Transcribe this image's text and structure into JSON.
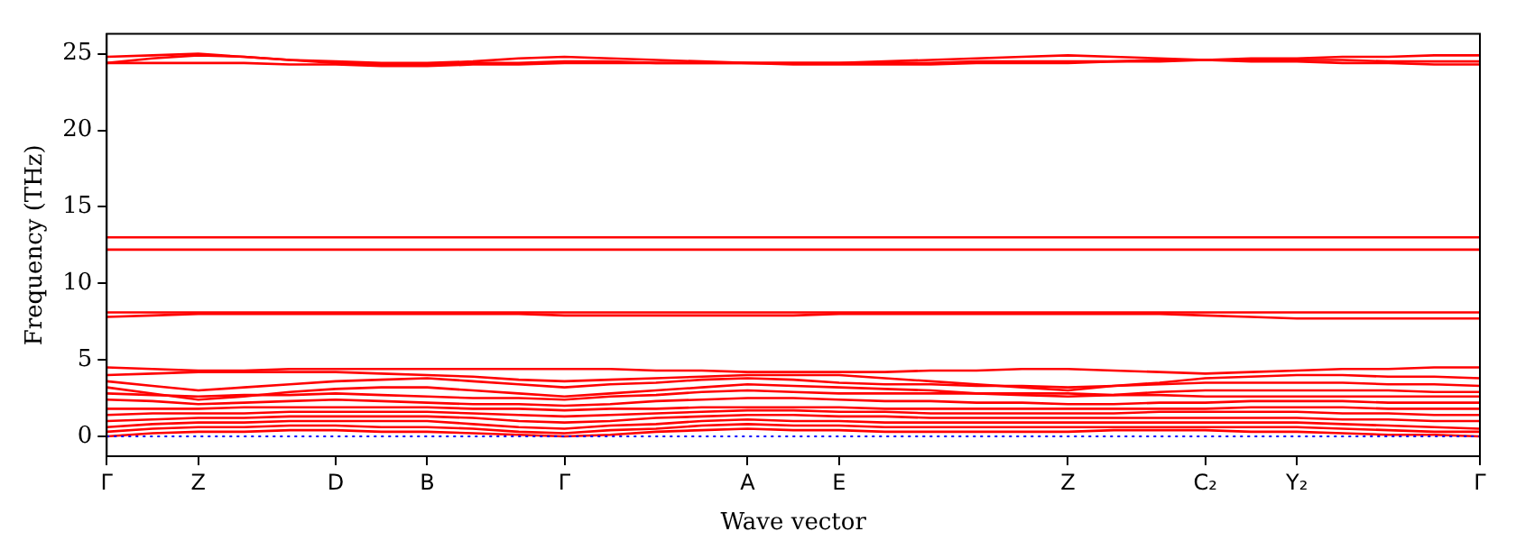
{
  "chart_data": {
    "type": "line",
    "xlabel": "Wave vector",
    "ylabel": "Frequency (THz)",
    "categories": [
      "Γ",
      null,
      "Z",
      null,
      null,
      "D",
      null,
      "B",
      null,
      null,
      "Γ",
      null,
      null,
      null,
      "A",
      null,
      "E",
      null,
      null,
      null,
      null,
      "Z",
      null,
      null,
      "C₂",
      null,
      "Y₂",
      null,
      null,
      null,
      "Γ"
    ],
    "ylim": [
      -1.3,
      26.3
    ],
    "yticks": [
      0,
      5,
      10,
      15,
      20,
      25
    ],
    "grid": false,
    "legend": false,
    "marker": "none",
    "line_style": "solid",
    "ref_lines": [
      {
        "axis": "y",
        "value": 0,
        "color": "#0000ff",
        "line_style": "dotted"
      }
    ],
    "series": [
      {
        "color": "#ff0000",
        "values": [
          24.4,
          24.7,
          24.9,
          24.8,
          24.6,
          24.5,
          24.4,
          24.4,
          24.5,
          24.7,
          24.8,
          24.7,
          24.6,
          24.5,
          24.4,
          24.4,
          24.4,
          24.5,
          24.6,
          24.7,
          24.8,
          24.9,
          24.8,
          24.7,
          24.6,
          24.7,
          24.7,
          24.8,
          24.8,
          24.9,
          24.9
        ]
      },
      {
        "color": "#ff0000",
        "values": [
          24.8,
          24.9,
          25.0,
          24.8,
          24.6,
          24.4,
          24.3,
          24.3,
          24.4,
          24.4,
          24.5,
          24.5,
          24.4,
          24.4,
          24.4,
          24.4,
          24.4,
          24.4,
          24.4,
          24.5,
          24.5,
          24.5,
          24.5,
          24.6,
          24.6,
          24.6,
          24.6,
          24.6,
          24.5,
          24.5,
          24.5
        ]
      },
      {
        "color": "#ff0000",
        "values": [
          24.4,
          24.4,
          24.4,
          24.4,
          24.3,
          24.3,
          24.2,
          24.2,
          24.3,
          24.3,
          24.4,
          24.4,
          24.4,
          24.4,
          24.4,
          24.3,
          24.3,
          24.3,
          24.3,
          24.4,
          24.4,
          24.4,
          24.5,
          24.5,
          24.6,
          24.5,
          24.5,
          24.4,
          24.4,
          24.3,
          24.3
        ]
      },
      {
        "color": "#ff0000",
        "values": [
          13.0,
          13.0,
          13.0,
          13.0,
          13.0,
          13.0,
          13.0,
          13.0,
          13.0,
          13.0,
          13.0,
          13.0,
          13.0,
          13.0,
          13.0,
          13.0,
          13.0,
          13.0,
          13.0,
          13.0,
          13.0,
          13.0,
          13.0,
          13.0,
          13.0,
          13.0,
          13.0,
          13.0,
          13.0,
          13.0,
          13.0
        ]
      },
      {
        "color": "#ff0000",
        "values": [
          12.2,
          12.2,
          12.2,
          12.2,
          12.2,
          12.2,
          12.2,
          12.2,
          12.2,
          12.2,
          12.2,
          12.2,
          12.2,
          12.2,
          12.2,
          12.2,
          12.2,
          12.2,
          12.2,
          12.2,
          12.2,
          12.2,
          12.2,
          12.2,
          12.2,
          12.2,
          12.2,
          12.2,
          12.2,
          12.2,
          12.2
        ]
      },
      {
        "color": "#ff0000",
        "values": [
          7.8,
          7.9,
          8.0,
          8.0,
          8.0,
          8.0,
          8.0,
          8.0,
          8.0,
          8.0,
          7.9,
          7.9,
          7.9,
          7.9,
          7.9,
          7.9,
          8.0,
          8.0,
          8.0,
          8.0,
          8.0,
          8.0,
          8.0,
          8.0,
          7.9,
          7.8,
          7.7,
          7.7,
          7.7,
          7.7,
          7.7
        ]
      },
      {
        "color": "#ff0000",
        "values": [
          8.1,
          8.1,
          8.1,
          8.1,
          8.1,
          8.1,
          8.1,
          8.1,
          8.1,
          8.1,
          8.1,
          8.1,
          8.1,
          8.1,
          8.1,
          8.1,
          8.1,
          8.1,
          8.1,
          8.1,
          8.1,
          8.1,
          8.1,
          8.1,
          8.1,
          8.1,
          8.1,
          8.1,
          8.1,
          8.1,
          8.1
        ]
      },
      {
        "color": "#ff0000",
        "values": [
          4.5,
          4.4,
          4.3,
          4.3,
          4.4,
          4.4,
          4.4,
          4.4,
          4.4,
          4.4,
          4.4,
          4.4,
          4.3,
          4.3,
          4.2,
          4.2,
          4.2,
          4.2,
          4.3,
          4.3,
          4.4,
          4.4,
          4.3,
          4.2,
          4.1,
          4.2,
          4.3,
          4.4,
          4.4,
          4.5,
          4.5
        ]
      },
      {
        "color": "#ff0000",
        "values": [
          4.0,
          4.1,
          4.2,
          4.2,
          4.2,
          4.2,
          4.1,
          4.0,
          3.9,
          3.7,
          3.6,
          3.7,
          3.8,
          3.9,
          4.0,
          4.0,
          4.0,
          3.8,
          3.6,
          3.4,
          3.2,
          3.0,
          3.3,
          3.5,
          3.8,
          3.9,
          4.0,
          4.0,
          3.9,
          3.9,
          3.8
        ]
      },
      {
        "color": "#ff0000",
        "values": [
          3.6,
          3.3,
          3.0,
          3.2,
          3.4,
          3.6,
          3.7,
          3.8,
          3.6,
          3.4,
          3.2,
          3.4,
          3.5,
          3.7,
          3.8,
          3.7,
          3.5,
          3.4,
          3.4,
          3.3,
          3.3,
          3.2,
          3.3,
          3.4,
          3.5,
          3.5,
          3.5,
          3.5,
          3.4,
          3.4,
          3.3
        ]
      },
      {
        "color": "#ff0000",
        "values": [
          3.2,
          2.8,
          2.4,
          2.6,
          2.9,
          3.1,
          3.2,
          3.2,
          3.0,
          2.8,
          2.6,
          2.8,
          3.0,
          3.2,
          3.4,
          3.3,
          3.2,
          3.1,
          3.0,
          2.8,
          2.7,
          2.6,
          2.7,
          2.9,
          3.0,
          3.0,
          3.0,
          3.0,
          3.0,
          2.9,
          2.9
        ]
      },
      {
        "color": "#ff0000",
        "values": [
          2.8,
          2.7,
          2.6,
          2.7,
          2.7,
          2.8,
          2.7,
          2.6,
          2.5,
          2.5,
          2.4,
          2.6,
          2.7,
          2.9,
          3.0,
          2.9,
          2.8,
          2.8,
          2.8,
          2.8,
          2.8,
          2.8,
          2.7,
          2.7,
          2.6,
          2.6,
          2.6,
          2.6,
          2.6,
          2.6,
          2.6
        ]
      },
      {
        "color": "#ff0000",
        "values": [
          2.4,
          2.3,
          2.1,
          2.2,
          2.3,
          2.4,
          2.3,
          2.2,
          2.1,
          2.1,
          2.0,
          2.1,
          2.3,
          2.4,
          2.5,
          2.5,
          2.4,
          2.3,
          2.3,
          2.2,
          2.2,
          2.1,
          2.1,
          2.2,
          2.2,
          2.3,
          2.3,
          2.3,
          2.2,
          2.2,
          2.2
        ]
      },
      {
        "color": "#ff0000",
        "values": [
          1.8,
          1.8,
          1.8,
          1.9,
          1.9,
          1.9,
          1.9,
          1.9,
          1.8,
          1.8,
          1.7,
          1.8,
          1.8,
          1.9,
          1.9,
          1.9,
          1.9,
          1.8,
          1.8,
          1.8,
          1.8,
          1.8,
          1.8,
          1.8,
          1.8,
          1.9,
          1.9,
          1.9,
          1.8,
          1.8,
          1.8
        ]
      },
      {
        "color": "#ff0000",
        "values": [
          1.4,
          1.5,
          1.5,
          1.5,
          1.6,
          1.6,
          1.6,
          1.6,
          1.5,
          1.4,
          1.3,
          1.4,
          1.5,
          1.6,
          1.7,
          1.7,
          1.6,
          1.6,
          1.5,
          1.5,
          1.5,
          1.5,
          1.5,
          1.6,
          1.6,
          1.6,
          1.6,
          1.5,
          1.5,
          1.4,
          1.4
        ]
      },
      {
        "color": "#ff0000",
        "values": [
          1.0,
          1.1,
          1.2,
          1.2,
          1.3,
          1.3,
          1.3,
          1.3,
          1.2,
          1.0,
          0.9,
          1.0,
          1.2,
          1.3,
          1.4,
          1.4,
          1.3,
          1.3,
          1.2,
          1.2,
          1.2,
          1.2,
          1.2,
          1.2,
          1.2,
          1.2,
          1.2,
          1.1,
          1.1,
          1.0,
          1.0
        ]
      },
      {
        "color": "#ff0000",
        "values": [
          0.6,
          0.8,
          0.9,
          0.9,
          1.0,
          1.0,
          1.0,
          1.0,
          0.8,
          0.6,
          0.5,
          0.7,
          0.8,
          1.0,
          1.1,
          1.0,
          1.0,
          0.9,
          0.9,
          0.9,
          0.9,
          0.9,
          0.9,
          0.9,
          0.9,
          0.9,
          0.9,
          0.8,
          0.7,
          0.6,
          0.5
        ]
      },
      {
        "color": "#ff0000",
        "values": [
          0.3,
          0.5,
          0.6,
          0.6,
          0.7,
          0.7,
          0.6,
          0.6,
          0.5,
          0.3,
          0.2,
          0.4,
          0.5,
          0.7,
          0.8,
          0.7,
          0.7,
          0.6,
          0.6,
          0.6,
          0.6,
          0.6,
          0.6,
          0.6,
          0.6,
          0.6,
          0.6,
          0.5,
          0.4,
          0.3,
          0.3
        ]
      },
      {
        "color": "#ff0000",
        "values": [
          0.0,
          0.2,
          0.3,
          0.3,
          0.4,
          0.4,
          0.3,
          0.3,
          0.2,
          0.1,
          0.0,
          0.1,
          0.3,
          0.4,
          0.5,
          0.4,
          0.4,
          0.3,
          0.3,
          0.3,
          0.3,
          0.3,
          0.4,
          0.4,
          0.4,
          0.3,
          0.3,
          0.2,
          0.1,
          0.1,
          0.0
        ]
      }
    ]
  }
}
